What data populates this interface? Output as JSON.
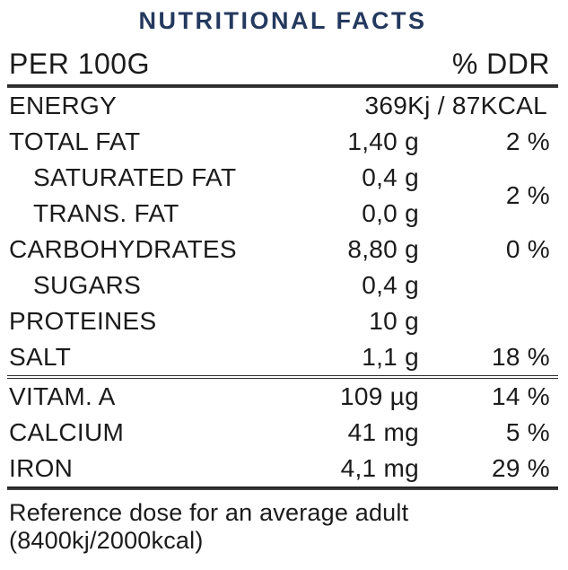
{
  "title": "NUTRITIONAL FACTS",
  "colors": {
    "title_navy": "#24395e",
    "text": "#1b1b1b",
    "rule": "#2e2e2e"
  },
  "table": {
    "header": {
      "left": "PER 100G",
      "right": "% DDR"
    },
    "rows": [
      {
        "label": "ENERGY",
        "amount": "369Kj / 87KCAL",
        "percent": ""
      },
      {
        "label": "TOTAL FAT",
        "amount": "1,40 g",
        "percent": "2 %"
      },
      {
        "label": "SATURATED FAT",
        "amount": "0,4 g",
        "percent": ""
      },
      {
        "label": "TRANS. FAT",
        "amount": "0,0 g",
        "percent": ""
      },
      {
        "label": "CARBOHYDRATES",
        "amount": "8,80 g",
        "percent": "0 %"
      },
      {
        "label": "SUGARS",
        "amount": "0,4 g",
        "percent": ""
      },
      {
        "label": "PROTEINES",
        "amount": "10 g",
        "percent": ""
      },
      {
        "label": "SALT",
        "amount": "1,1 g",
        "percent": "18 %"
      }
    ],
    "fat_subgroup_percent": "2 %",
    "micro_rows": [
      {
        "label": "VITAM. A",
        "amount": "109 µg",
        "percent": "14 %"
      },
      {
        "label": "CALCIUM",
        "amount": "41 mg",
        "percent": "5 %"
      },
      {
        "label": "IRON",
        "amount": "4,1 mg",
        "percent": "29 %"
      }
    ]
  },
  "footer": {
    "line1": "Reference dose for an average adult",
    "line2": "(8400kj/2000kcal)"
  }
}
